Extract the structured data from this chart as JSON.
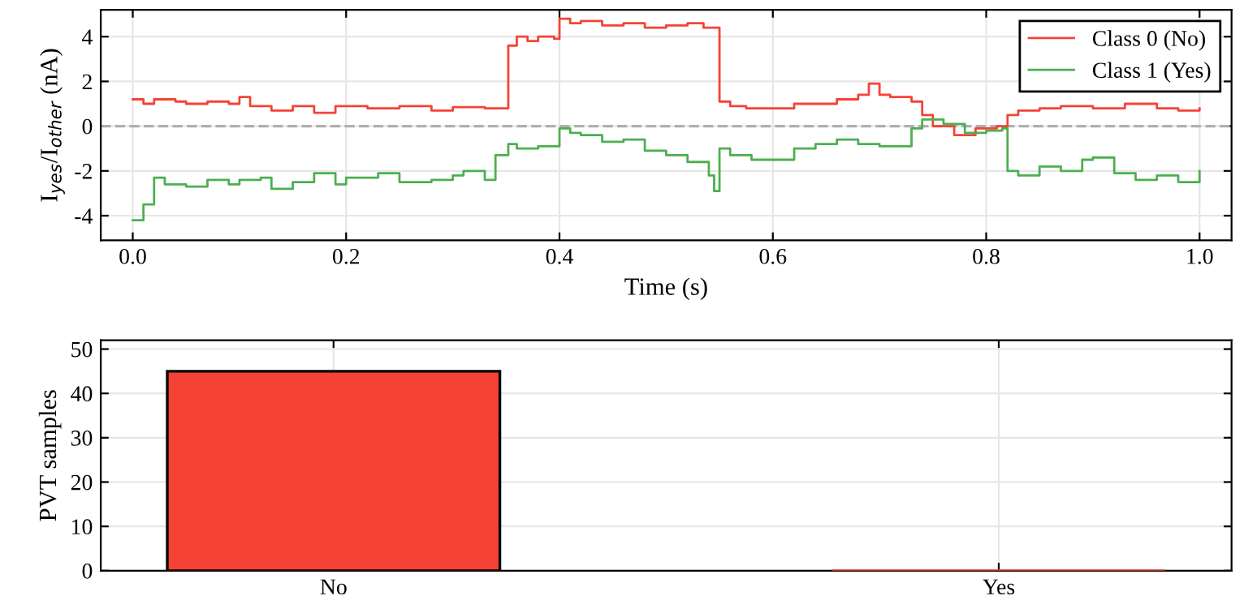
{
  "chart_data": [
    {
      "type": "step",
      "xlabel": "Time (s)",
      "ylabel": "I$_{yes}$/I$_{other}$ (nA)",
      "xlim": [
        -0.03,
        1.03
      ],
      "ylim": [
        -5.1,
        5.2
      ],
      "xticks": [
        {
          "value": 0,
          "label": "0.0"
        },
        {
          "value": 0.2,
          "label": "0.2"
        },
        {
          "value": 0.4,
          "label": "0.4"
        },
        {
          "value": 0.6,
          "label": "0.6"
        },
        {
          "value": 0.8,
          "label": "0.8"
        },
        {
          "value": 1,
          "label": "1.0"
        }
      ],
      "yticks": [
        -4,
        -2,
        0,
        2,
        4
      ],
      "grid": true,
      "legend": "top right",
      "ref_lines": [
        {
          "axis": "y",
          "value": 0,
          "color": "#b0b0b0",
          "line_style": "dashed"
        }
      ],
      "x": [
        0.0,
        0.01,
        0.02,
        0.04,
        0.05,
        0.07,
        0.09,
        0.1,
        0.11,
        0.13,
        0.15,
        0.17,
        0.19,
        0.22,
        0.25,
        0.28,
        0.3,
        0.33,
        0.352,
        0.36,
        0.37,
        0.38,
        0.395,
        0.4,
        0.41,
        0.42,
        0.44,
        0.46,
        0.48,
        0.5,
        0.52,
        0.535,
        0.55,
        0.56,
        0.575,
        0.6,
        0.62,
        0.64,
        0.66,
        0.68,
        0.69,
        0.7,
        0.71,
        0.72,
        0.73,
        0.74,
        0.75,
        0.77,
        0.79,
        0.81,
        0.82,
        0.83,
        0.85,
        0.87,
        0.9,
        0.93,
        0.96,
        0.98,
        1.0
      ],
      "series": [
        {
          "name": "Class 0 (No)",
          "color": "#f44336",
          "values": [
            1.2,
            1.0,
            1.2,
            1.1,
            1.0,
            1.1,
            1.0,
            1.3,
            0.9,
            0.7,
            0.9,
            0.6,
            0.9,
            0.8,
            0.9,
            0.7,
            0.85,
            0.8,
            3.6,
            4.0,
            3.8,
            4.0,
            3.9,
            4.8,
            4.6,
            4.7,
            4.5,
            4.6,
            4.4,
            4.5,
            4.6,
            4.4,
            1.1,
            0.9,
            0.8,
            0.8,
            1.0,
            1.0,
            1.2,
            1.4,
            1.9,
            1.4,
            1.3,
            1.3,
            1.1,
            0.5,
            0.0,
            -0.4,
            -0.1,
            0.0,
            0.5,
            0.7,
            0.8,
            0.9,
            0.8,
            1.0,
            0.8,
            0.7,
            0.8
          ]
        },
        {
          "name": "Class 1 (Yes)",
          "color": "#4caf50",
          "x": [
            0.0,
            0.01,
            0.02,
            0.03,
            0.05,
            0.07,
            0.09,
            0.1,
            0.12,
            0.13,
            0.15,
            0.17,
            0.19,
            0.2,
            0.23,
            0.25,
            0.28,
            0.3,
            0.31,
            0.33,
            0.34,
            0.352,
            0.36,
            0.38,
            0.395,
            0.4,
            0.41,
            0.42,
            0.44,
            0.46,
            0.48,
            0.5,
            0.52,
            0.54,
            0.545,
            0.55,
            0.56,
            0.58,
            0.6,
            0.62,
            0.64,
            0.66,
            0.68,
            0.7,
            0.72,
            0.73,
            0.74,
            0.76,
            0.78,
            0.8,
            0.815,
            0.82,
            0.83,
            0.85,
            0.87,
            0.89,
            0.9,
            0.92,
            0.94,
            0.96,
            0.98,
            1.0
          ],
          "values": [
            -4.2,
            -3.5,
            -2.3,
            -2.6,
            -2.7,
            -2.4,
            -2.6,
            -2.4,
            -2.3,
            -2.8,
            -2.5,
            -2.1,
            -2.6,
            -2.3,
            -2.1,
            -2.5,
            -2.4,
            -2.2,
            -2.0,
            -2.4,
            -1.3,
            -0.8,
            -1.0,
            -0.9,
            -0.9,
            -0.1,
            -0.3,
            -0.4,
            -0.7,
            -0.6,
            -1.1,
            -1.3,
            -1.6,
            -2.2,
            -2.9,
            -1.0,
            -1.3,
            -1.5,
            -1.5,
            -1.0,
            -0.8,
            -0.6,
            -0.8,
            -0.9,
            -0.9,
            -0.1,
            0.3,
            0.1,
            -0.3,
            -0.2,
            -0.1,
            -2.0,
            -2.2,
            -1.8,
            -2.0,
            -1.5,
            -1.4,
            -2.1,
            -2.4,
            -2.2,
            -2.5,
            -2.0
          ]
        }
      ]
    },
    {
      "type": "bar",
      "ylabel": "PVT samples",
      "categories": [
        "No",
        "Yes"
      ],
      "values": [
        45,
        0
      ],
      "colors": [
        "#f44336",
        "#f44336"
      ],
      "ylim": [
        0,
        52
      ],
      "yticks": [
        0,
        10,
        20,
        30,
        40,
        50
      ],
      "grid": true
    }
  ]
}
